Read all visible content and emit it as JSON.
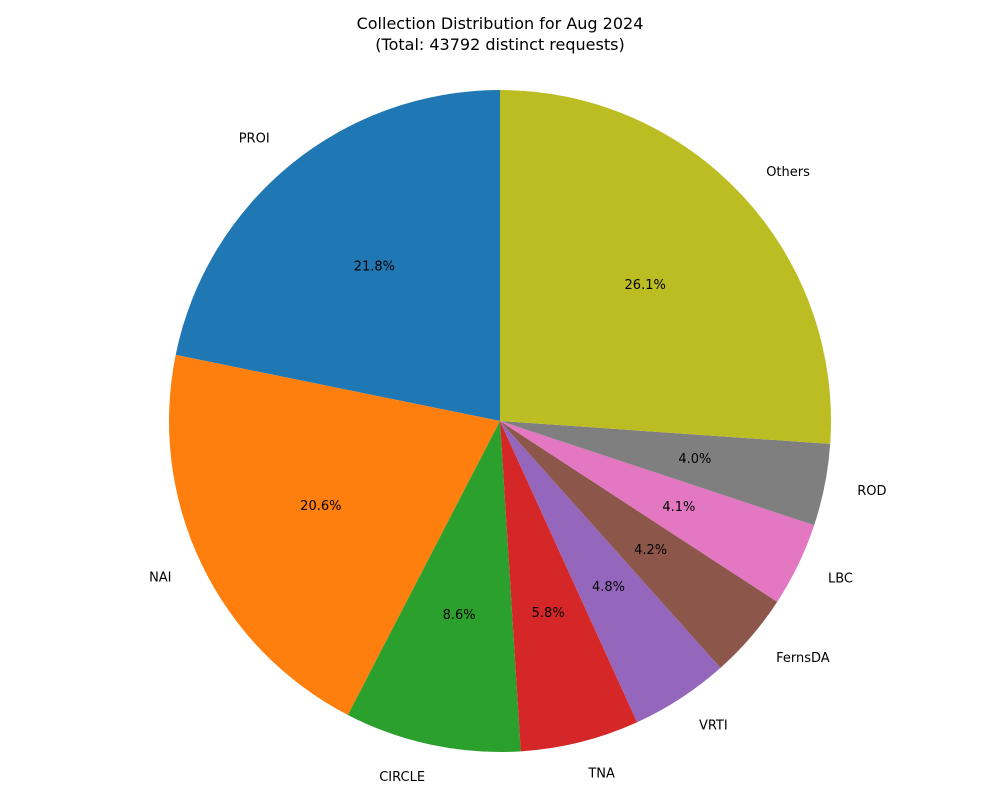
{
  "chart_data": {
    "type": "pie",
    "title": "Collection Distribution for Aug 2024",
    "subtitle": "(Total: 43792 distinct requests)",
    "start_angle_deg": 90,
    "direction": "counterclockwise",
    "slices": [
      {
        "label": "PROI",
        "value": 21.8,
        "pct_label": "21.8%",
        "color": "#1f77b4"
      },
      {
        "label": "NAI",
        "value": 20.6,
        "pct_label": "20.6%",
        "color": "#ff7f0e"
      },
      {
        "label": "CIRCLE",
        "value": 8.6,
        "pct_label": "8.6%",
        "color": "#2ca02c"
      },
      {
        "label": "TNA",
        "value": 5.8,
        "pct_label": "5.8%",
        "color": "#d62728"
      },
      {
        "label": "VRTI",
        "value": 4.8,
        "pct_label": "4.8%",
        "color": "#9467bd"
      },
      {
        "label": "FernsDA",
        "value": 4.2,
        "pct_label": "4.2%",
        "color": "#8c564b"
      },
      {
        "label": "LBC",
        "value": 4.1,
        "pct_label": "4.1%",
        "color": "#e377c2"
      },
      {
        "label": "ROD",
        "value": 4.0,
        "pct_label": "4.0%",
        "color": "#7f7f7f"
      },
      {
        "label": "Others",
        "value": 26.1,
        "pct_label": "26.1%",
        "color": "#bcbd22"
      }
    ]
  }
}
